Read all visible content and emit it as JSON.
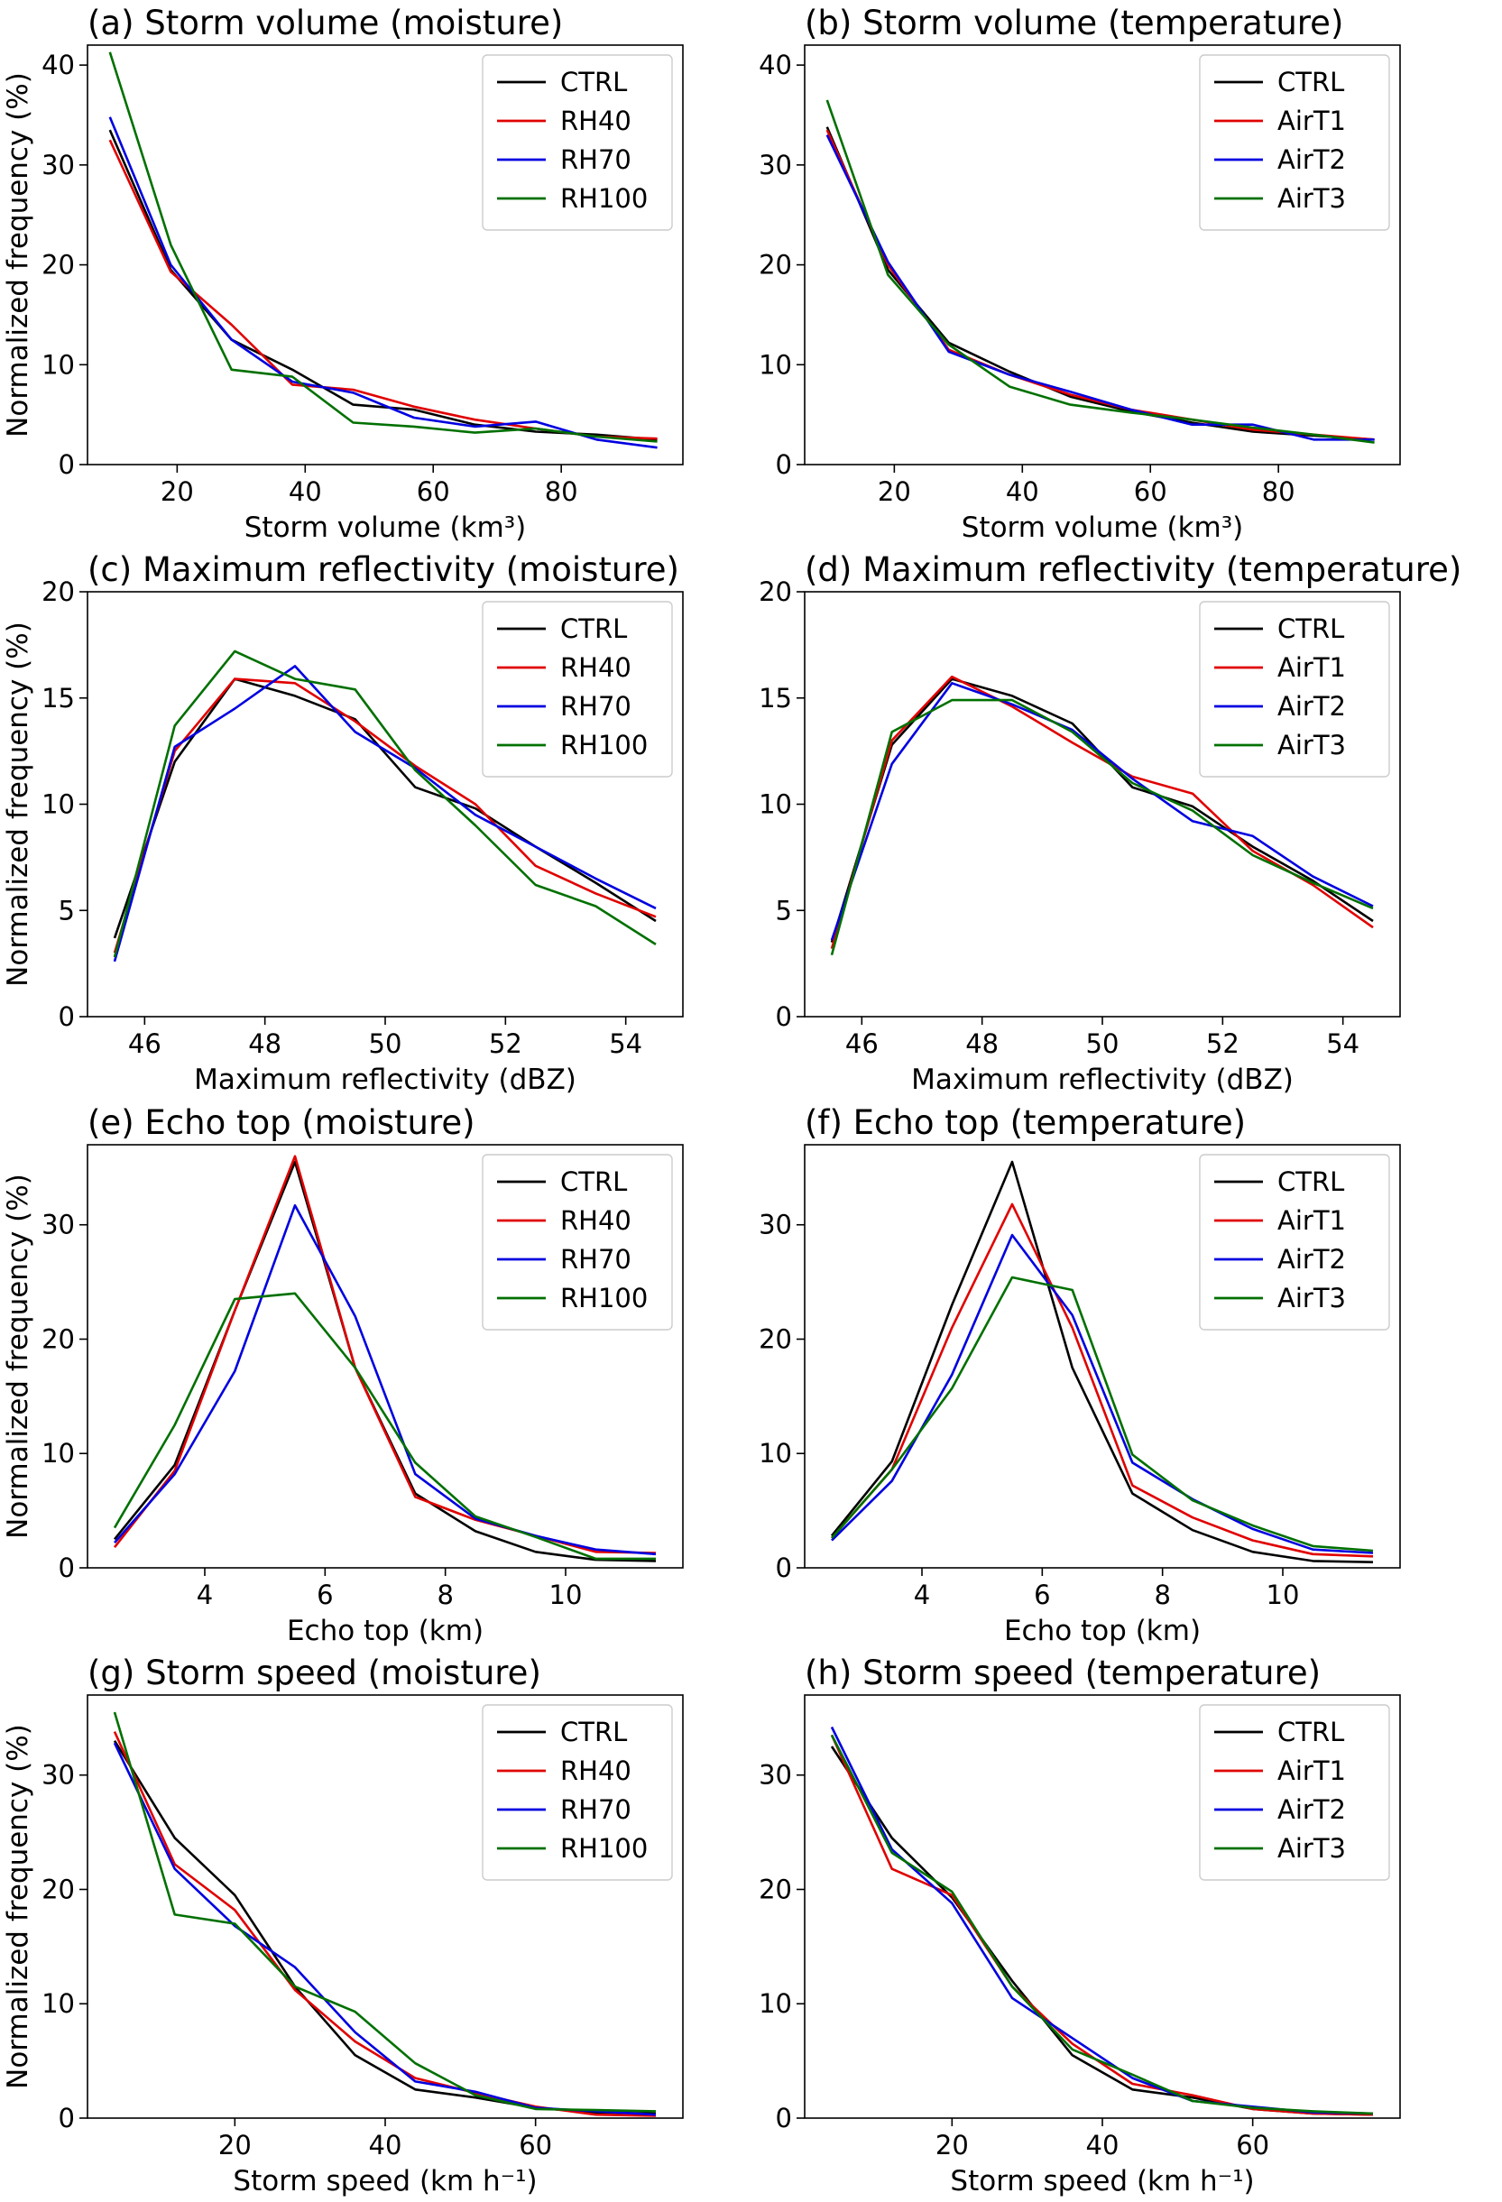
{
  "colors": {
    "CTRL": "#000000",
    "RH40": "#e00000",
    "RH70": "#0000e0",
    "RH100": "#007000",
    "AirT1": "#e00000",
    "AirT2": "#0000e0",
    "AirT3": "#007000"
  },
  "chart_data": [
    {
      "id": "a",
      "type": "line",
      "title": "(a) Storm volume (moisture)",
      "xlabel": "Storm volume (km³)",
      "ylabel": "Normalized frequency (%)",
      "xlim": [
        6,
        99
      ],
      "ylim": [
        0,
        42
      ],
      "xticks": [
        20,
        40,
        60,
        80
      ],
      "yticks": [
        0,
        10,
        20,
        30,
        40
      ],
      "legend_position": "top-right",
      "grid": false,
      "x": [
        9.5,
        19,
        28.5,
        38,
        47.5,
        57,
        66.5,
        76,
        85.5,
        95
      ],
      "series": [
        {
          "name": "CTRL",
          "values": [
            33.5,
            19.5,
            12.5,
            9.5,
            6.0,
            5.5,
            4.0,
            3.3,
            3.0,
            2.5
          ]
        },
        {
          "name": "RH40",
          "values": [
            32.5,
            19.3,
            14.0,
            8.0,
            7.5,
            5.8,
            4.5,
            3.6,
            2.8,
            2.6
          ]
        },
        {
          "name": "RH70",
          "values": [
            34.8,
            20.0,
            12.5,
            8.3,
            7.2,
            4.7,
            3.8,
            4.3,
            2.5,
            1.7
          ]
        },
        {
          "name": "RH100",
          "values": [
            41.3,
            22.0,
            9.5,
            8.8,
            4.2,
            3.8,
            3.2,
            3.6,
            2.8,
            2.3
          ]
        }
      ]
    },
    {
      "id": "b",
      "type": "line",
      "title": "(b) Storm volume (temperature)",
      "xlabel": "Storm volume (km³)",
      "ylabel": "",
      "xlim": [
        6,
        99
      ],
      "ylim": [
        0,
        42
      ],
      "xticks": [
        20,
        40,
        60,
        80
      ],
      "yticks": [
        0,
        10,
        20,
        30,
        40
      ],
      "legend_position": "top-right",
      "grid": false,
      "x": [
        9.5,
        19,
        28.5,
        38,
        47.5,
        57,
        66.5,
        76,
        85.5,
        95
      ],
      "series": [
        {
          "name": "CTRL",
          "values": [
            33.8,
            19.5,
            12.2,
            9.3,
            6.8,
            5.3,
            4.2,
            3.3,
            2.9,
            2.5
          ]
        },
        {
          "name": "AirT1",
          "values": [
            33.5,
            20.0,
            11.5,
            9.0,
            7.0,
            5.5,
            4.5,
            3.5,
            3.0,
            2.5
          ]
        },
        {
          "name": "AirT2",
          "values": [
            33.0,
            20.3,
            11.3,
            9.0,
            7.3,
            5.5,
            4.0,
            4.0,
            2.5,
            2.5
          ]
        },
        {
          "name": "AirT3",
          "values": [
            36.5,
            19.0,
            12.0,
            7.8,
            6.0,
            5.2,
            4.5,
            3.7,
            3.0,
            2.2
          ]
        }
      ]
    },
    {
      "id": "c",
      "type": "line",
      "title": "(c) Maximum reflectivity (moisture)",
      "xlabel": "Maximum reflectivity (dBZ)",
      "ylabel": "Normalized frequency (%)",
      "xlim": [
        45.05,
        54.95
      ],
      "ylim": [
        0,
        20
      ],
      "xticks": [
        46,
        48,
        50,
        52,
        54
      ],
      "yticks": [
        0,
        5,
        10,
        15,
        20
      ],
      "legend_position": "top-right",
      "grid": false,
      "x": [
        45.5,
        46.5,
        47.5,
        48.5,
        49.5,
        50.5,
        51.5,
        52.5,
        53.5,
        54.5
      ],
      "series": [
        {
          "name": "CTRL",
          "values": [
            3.7,
            12.0,
            15.9,
            15.1,
            14.0,
            10.8,
            9.8,
            8.0,
            6.3,
            4.5
          ]
        },
        {
          "name": "RH40",
          "values": [
            3.0,
            12.5,
            15.9,
            15.7,
            13.9,
            11.8,
            10.0,
            7.1,
            5.8,
            4.7
          ]
        },
        {
          "name": "RH70",
          "values": [
            2.6,
            12.7,
            14.5,
            16.5,
            13.4,
            11.7,
            9.5,
            8.0,
            6.5,
            5.1
          ]
        },
        {
          "name": "RH100",
          "values": [
            2.8,
            13.7,
            17.2,
            15.9,
            15.4,
            11.6,
            9.0,
            6.2,
            5.2,
            3.4
          ]
        }
      ]
    },
    {
      "id": "d",
      "type": "line",
      "title": "(d) Maximum reflectivity (temperature)",
      "xlabel": "Maximum reflectivity (dBZ)",
      "ylabel": "",
      "xlim": [
        45.05,
        54.95
      ],
      "ylim": [
        0,
        20
      ],
      "xticks": [
        46,
        48,
        50,
        52,
        54
      ],
      "yticks": [
        0,
        5,
        10,
        15,
        20
      ],
      "legend_position": "top-right",
      "grid": false,
      "x": [
        45.5,
        46.5,
        47.5,
        48.5,
        49.5,
        50.5,
        51.5,
        52.5,
        53.5,
        54.5
      ],
      "series": [
        {
          "name": "CTRL",
          "values": [
            3.5,
            12.8,
            15.9,
            15.1,
            13.8,
            10.8,
            9.9,
            8.0,
            6.4,
            4.5
          ]
        },
        {
          "name": "AirT1",
          "values": [
            3.2,
            13.0,
            16.0,
            14.6,
            12.9,
            11.3,
            10.5,
            7.8,
            6.2,
            4.2
          ]
        },
        {
          "name": "AirT2",
          "values": [
            3.6,
            11.9,
            15.7,
            14.7,
            13.5,
            11.2,
            9.2,
            8.5,
            6.6,
            5.2
          ]
        },
        {
          "name": "AirT3",
          "values": [
            2.9,
            13.4,
            14.9,
            14.9,
            13.4,
            11.0,
            9.7,
            7.6,
            6.3,
            5.1
          ]
        }
      ]
    },
    {
      "id": "e",
      "type": "line",
      "title": "(e) Echo top (moisture)",
      "xlabel": "Echo top (km)",
      "ylabel": "Normalized frequency (%)",
      "xlim": [
        2.05,
        11.95
      ],
      "ylim": [
        0,
        37
      ],
      "xticks": [
        4,
        6,
        8,
        10
      ],
      "yticks": [
        0,
        10,
        20,
        30
      ],
      "legend_position": "top-right",
      "grid": false,
      "x": [
        2.5,
        3.5,
        4.5,
        5.5,
        6.5,
        7.5,
        8.5,
        9.5,
        10.5,
        11.5
      ],
      "series": [
        {
          "name": "CTRL",
          "values": [
            2.5,
            9.0,
            22.5,
            35.5,
            17.5,
            6.5,
            3.2,
            1.4,
            0.7,
            0.6
          ]
        },
        {
          "name": "RH40",
          "values": [
            1.8,
            8.5,
            22.5,
            36.0,
            17.5,
            6.2,
            4.2,
            2.8,
            1.4,
            1.3
          ]
        },
        {
          "name": "RH70",
          "values": [
            2.2,
            8.2,
            17.2,
            31.7,
            22.0,
            8.2,
            4.3,
            2.8,
            1.6,
            1.2
          ]
        },
        {
          "name": "RH100",
          "values": [
            3.5,
            12.5,
            23.5,
            24.0,
            17.5,
            9.2,
            4.5,
            2.7,
            0.8,
            0.8
          ]
        }
      ]
    },
    {
      "id": "f",
      "type": "line",
      "title": "(f) Echo top (temperature)",
      "xlabel": "Echo top (km)",
      "ylabel": "",
      "xlim": [
        2.05,
        11.95
      ],
      "ylim": [
        0,
        37
      ],
      "xticks": [
        4,
        6,
        8,
        10
      ],
      "yticks": [
        0,
        10,
        20,
        30
      ],
      "legend_position": "top-right",
      "grid": false,
      "x": [
        2.5,
        3.5,
        4.5,
        5.5,
        6.5,
        7.5,
        8.5,
        9.5,
        10.5,
        11.5
      ],
      "series": [
        {
          "name": "CTRL",
          "values": [
            2.8,
            9.3,
            23.0,
            35.5,
            17.5,
            6.5,
            3.3,
            1.4,
            0.6,
            0.5
          ]
        },
        {
          "name": "AirT1",
          "values": [
            2.6,
            8.6,
            21.0,
            31.8,
            21.0,
            7.2,
            4.4,
            2.4,
            1.2,
            1.0
          ]
        },
        {
          "name": "AirT2",
          "values": [
            2.4,
            7.6,
            16.9,
            29.1,
            22.1,
            9.2,
            6.0,
            3.4,
            1.6,
            1.3
          ]
        },
        {
          "name": "AirT3",
          "values": [
            2.6,
            8.6,
            15.7,
            25.4,
            24.3,
            9.9,
            5.9,
            3.7,
            1.9,
            1.5
          ]
        }
      ]
    },
    {
      "id": "g",
      "type": "line",
      "title": "(g) Storm speed (moisture)",
      "xlabel": "Storm speed (km h⁻¹)",
      "ylabel": "Normalized frequency (%)",
      "xlim": [
        0.4,
        79.6
      ],
      "ylim": [
        0,
        37
      ],
      "xticks": [
        20,
        40,
        60
      ],
      "yticks": [
        0,
        10,
        20,
        30
      ],
      "legend_position": "top-right",
      "grid": false,
      "x": [
        4,
        12,
        20,
        28,
        36,
        44,
        52,
        60,
        68,
        76
      ],
      "series": [
        {
          "name": "CTRL",
          "values": [
            33.0,
            24.5,
            19.5,
            11.5,
            5.5,
            2.5,
            1.8,
            0.9,
            0.5,
            0.4
          ]
        },
        {
          "name": "RH40",
          "values": [
            33.8,
            22.2,
            18.2,
            11.2,
            6.7,
            3.5,
            2.2,
            1.0,
            0.3,
            0.2
          ]
        },
        {
          "name": "RH70",
          "values": [
            32.8,
            21.8,
            16.8,
            13.2,
            7.5,
            3.2,
            2.3,
            0.9,
            0.6,
            0.3
          ]
        },
        {
          "name": "RH100",
          "values": [
            35.5,
            17.8,
            17.0,
            11.5,
            9.3,
            4.8,
            2.0,
            0.8,
            0.7,
            0.6
          ]
        }
      ]
    },
    {
      "id": "h",
      "type": "line",
      "title": "(h) Storm speed (temperature)",
      "xlabel": "Storm speed (km h⁻¹)",
      "ylabel": "",
      "xlim": [
        0.4,
        79.6
      ],
      "ylim": [
        0,
        37
      ],
      "xticks": [
        20,
        40,
        60
      ],
      "yticks": [
        0,
        10,
        20,
        30
      ],
      "legend_position": "top-right",
      "grid": false,
      "x": [
        4,
        12,
        20,
        28,
        36,
        44,
        52,
        60,
        68,
        76
      ],
      "series": [
        {
          "name": "CTRL",
          "values": [
            32.5,
            24.5,
            19.3,
            12.0,
            5.5,
            2.5,
            1.8,
            0.8,
            0.4,
            0.3
          ]
        },
        {
          "name": "AirT1",
          "values": [
            33.5,
            21.8,
            19.5,
            11.5,
            6.5,
            3.0,
            2.0,
            0.8,
            0.4,
            0.3
          ]
        },
        {
          "name": "AirT2",
          "values": [
            34.2,
            23.5,
            18.8,
            10.5,
            7.0,
            3.5,
            1.5,
            1.0,
            0.5,
            0.4
          ]
        },
        {
          "name": "AirT3",
          "values": [
            33.5,
            23.2,
            19.8,
            11.5,
            6.0,
            3.8,
            1.5,
            0.9,
            0.6,
            0.4
          ]
        }
      ]
    }
  ]
}
